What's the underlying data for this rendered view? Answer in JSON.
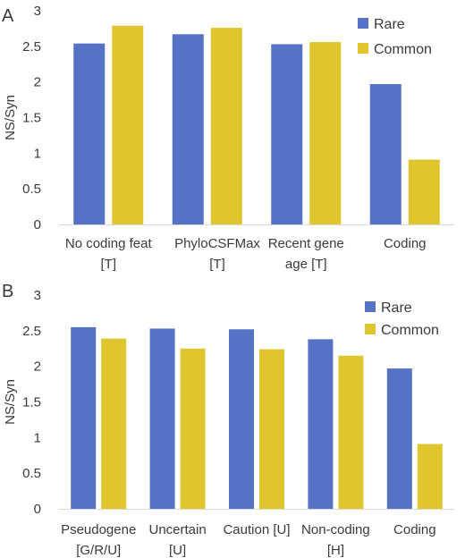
{
  "colors": {
    "rare": "#5572c4",
    "common": "#dfc52e",
    "grid": "#d9d9d9",
    "text": "#3a3a3a"
  },
  "chart_data": [
    {
      "type": "bar",
      "panel_label": "A",
      "ylabel": "NS/Syn",
      "ylim": [
        0,
        3
      ],
      "yticks": [
        "0",
        "0.5",
        "1",
        "1.5",
        "2",
        "2.5",
        "3"
      ],
      "grid": false,
      "legend": "top-right",
      "categories": [
        [
          "No coding feat",
          "[T]"
        ],
        [
          "PhyloCSFMax",
          "[T]"
        ],
        [
          "Recent gene",
          "age [T]"
        ],
        [
          "Coding"
        ]
      ],
      "series": [
        {
          "name": "Rare",
          "values": [
            2.54,
            2.67,
            2.53,
            1.97
          ]
        },
        {
          "name": "Common",
          "values": [
            2.79,
            2.76,
            2.56,
            0.91
          ]
        }
      ]
    },
    {
      "type": "bar",
      "panel_label": "B",
      "ylabel": "NS/Syn",
      "ylim": [
        0,
        3
      ],
      "yticks": [
        "0",
        "0.5",
        "1",
        "1.5",
        "2",
        "2.5",
        "3"
      ],
      "grid": false,
      "legend": "top-right",
      "categories": [
        [
          "Pseudogene",
          "[G/R/U]"
        ],
        [
          "Uncertain",
          "[U]"
        ],
        [
          "Caution [U]"
        ],
        [
          "Non-coding",
          "[H]"
        ],
        [
          "Coding"
        ]
      ],
      "series": [
        {
          "name": "Rare",
          "values": [
            2.55,
            2.53,
            2.52,
            2.38,
            1.97
          ]
        },
        {
          "name": "Common",
          "values": [
            2.39,
            2.25,
            2.24,
            2.15,
            0.91
          ]
        }
      ]
    }
  ]
}
